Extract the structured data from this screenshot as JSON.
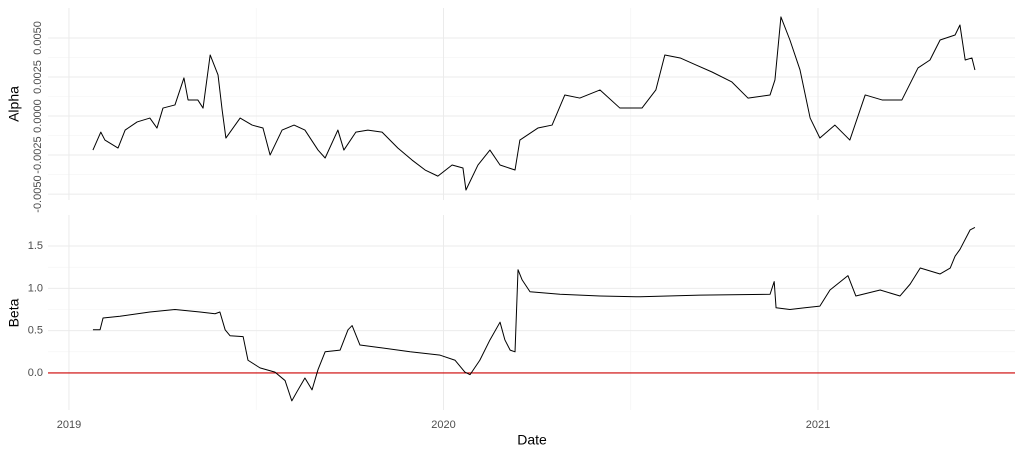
{
  "chart_data": [
    {
      "type": "line",
      "ylabel": "Alpha",
      "grid": true,
      "xlim": [
        2018.944,
        2021.526
      ],
      "xticks": [
        2019,
        2020,
        2021
      ],
      "ylim": [
        -0.00538,
        0.00692
      ],
      "yticks": [
        {
          "value": -0.005,
          "label": "-0.0050"
        },
        {
          "value": -0.0025,
          "label": "-0.0025"
        },
        {
          "value": 0,
          "label": "0.0000"
        },
        {
          "value": 0.0025,
          "label": "0.0025"
        },
        {
          "value": 0.005,
          "label": "0.0050"
        }
      ],
      "x": [
        2019.064,
        2019.085,
        2019.096,
        2019.131,
        2019.15,
        2019.182,
        2019.216,
        2019.235,
        2019.251,
        2019.283,
        2019.307,
        2019.318,
        2019.344,
        2019.358,
        2019.377,
        2019.398,
        2019.409,
        2019.419,
        2019.457,
        2019.489,
        2019.518,
        2019.537,
        2019.569,
        2019.601,
        2019.63,
        2019.665,
        2019.684,
        2019.718,
        2019.734,
        2019.766,
        2019.798,
        2019.836,
        2019.878,
        2019.916,
        2019.951,
        2019.985,
        2020.023,
        2020.052,
        2020.06,
        2020.092,
        2020.124,
        2020.151,
        2020.191,
        2020.204,
        2020.252,
        2020.29,
        2020.324,
        2020.364,
        2020.418,
        2020.471,
        2020.53,
        2020.567,
        2020.591,
        2020.632,
        2020.674,
        2020.717,
        2020.77,
        2020.813,
        2020.872,
        2020.885,
        2020.901,
        2020.925,
        2020.952,
        2020.979,
        2021.005,
        2021.045,
        2021.085,
        2021.126,
        2021.171,
        2021.224,
        2021.267,
        2021.299,
        2021.326,
        2021.366,
        2021.379,
        2021.393,
        2021.411,
        2021.419
      ],
      "series": [
        {
          "color": "#000000",
          "values": [
            -0.00218,
            -0.00103,
            -0.00154,
            -0.00205,
            -0.0009,
            -0.00038,
            -0.00013,
            -0.00077,
            0.00051,
            0.00071,
            0.00244,
            0.00103,
            0.00103,
            0.00051,
            0.00391,
            0.00263,
            0.00038,
            -0.00141,
            -0.00013,
            -0.00058,
            -0.00077,
            -0.0025,
            -0.0009,
            -0.00058,
            -0.0009,
            -0.00218,
            -0.00269,
            -0.0009,
            -0.00218,
            -0.00103,
            -0.0009,
            -0.00103,
            -0.00205,
            -0.00282,
            -0.00346,
            -0.00385,
            -0.00314,
            -0.00333,
            -0.00474,
            -0.00314,
            -0.00218,
            -0.00314,
            -0.00346,
            -0.00154,
            -0.00077,
            -0.00058,
            0.00135,
            0.00115,
            0.00167,
            0.00051,
            0.00051,
            0.00167,
            0.00391,
            0.00372,
            0.00327,
            0.00282,
            0.00218,
            0.00115,
            0.00135,
            0.00231,
            0.00635,
            0.00487,
            0.00295,
            -0.00013,
            -0.00141,
            -0.00058,
            -0.00154,
            0.00135,
            0.00103,
            0.00103,
            0.00308,
            0.00359,
            0.00487,
            0.00519,
            0.00583,
            0.00359,
            0.00372,
            0.00295
          ]
        }
      ]
    },
    {
      "type": "line",
      "ylabel": "Beta",
      "xlabel": "Date",
      "grid": true,
      "xlim": [
        2018.944,
        2021.526
      ],
      "xticks": [
        2019,
        2020,
        2021
      ],
      "ylim": [
        -0.438,
        1.867
      ],
      "yticks": [
        {
          "value": 0,
          "label": "0.0"
        },
        {
          "value": 0.5,
          "label": "0.5"
        },
        {
          "value": 1,
          "label": "1.0"
        },
        {
          "value": 1.5,
          "label": "1.5"
        }
      ],
      "hline": 0,
      "hline_color": "#cc0000",
      "x": [
        2019.064,
        2019.083,
        2019.091,
        2019.136,
        2019.216,
        2019.283,
        2019.35,
        2019.39,
        2019.403,
        2019.417,
        2019.43,
        2019.465,
        2019.478,
        2019.51,
        2019.55,
        2019.577,
        2019.595,
        2019.609,
        2019.63,
        2019.649,
        2019.665,
        2019.684,
        2019.724,
        2019.745,
        2019.756,
        2019.777,
        2019.83,
        2019.911,
        2019.991,
        2020.031,
        2020.057,
        2020.071,
        2020.097,
        2020.124,
        2020.151,
        2020.164,
        2020.178,
        2020.191,
        2020.199,
        2020.21,
        2020.231,
        2020.311,
        2020.418,
        2020.525,
        2020.685,
        2020.872,
        2020.883,
        2020.888,
        2020.925,
        2020.965,
        2021.005,
        2021.032,
        2021.08,
        2021.101,
        2021.166,
        2021.219,
        2021.246,
        2021.273,
        2021.326,
        2021.353,
        2021.366,
        2021.379,
        2021.406,
        2021.419
      ],
      "series": [
        {
          "color": "#000000",
          "values": [
            0.51,
            0.51,
            0.65,
            0.67,
            0.72,
            0.75,
            0.72,
            0.7,
            0.72,
            0.51,
            0.44,
            0.43,
            0.15,
            0.06,
            0.01,
            -0.09,
            -0.33,
            -0.22,
            -0.06,
            -0.2,
            0.04,
            0.25,
            0.27,
            0.51,
            0.56,
            0.33,
            0.3,
            0.25,
            0.21,
            0.15,
            0.01,
            -0.02,
            0.15,
            0.39,
            0.6,
            0.39,
            0.27,
            0.25,
            1.22,
            1.1,
            0.96,
            0.93,
            0.91,
            0.9,
            0.92,
            0.93,
            1.08,
            0.77,
            0.75,
            0.77,
            0.79,
            0.98,
            1.15,
            0.91,
            0.98,
            0.91,
            1.05,
            1.24,
            1.17,
            1.24,
            1.38,
            1.46,
            1.69,
            1.72
          ]
        }
      ]
    }
  ]
}
